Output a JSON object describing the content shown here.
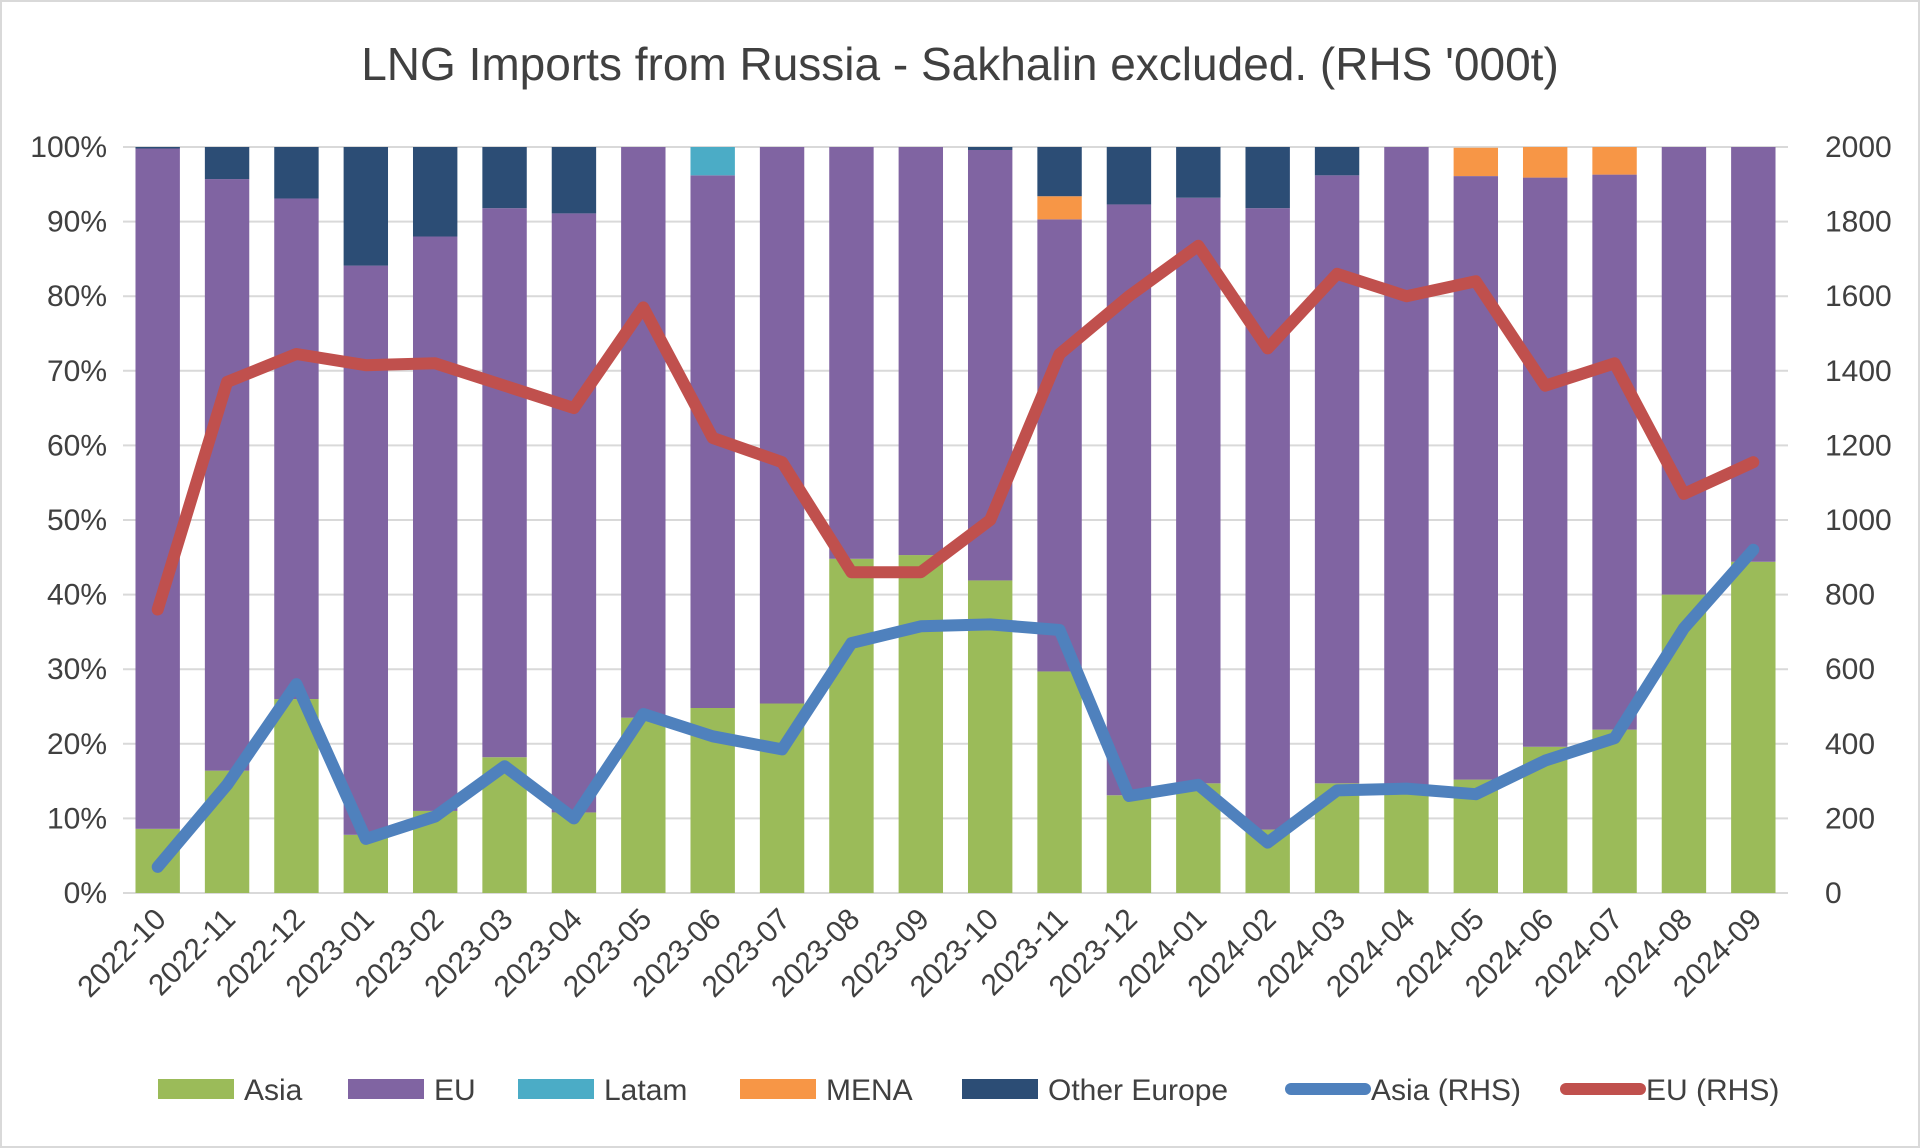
{
  "chart_data": {
    "type": "bar",
    "title": "LNG Imports from Russia - Sakhalin excluded. (RHS '000t)",
    "categories": [
      "2022-10",
      "2022-11",
      "2022-12",
      "2023-01",
      "2023-02",
      "2023-03",
      "2023-04",
      "2023-05",
      "2023-06",
      "2023-07",
      "2023-08",
      "2023-09",
      "2023-10",
      "2023-11",
      "2023-12",
      "2024-01",
      "2024-02",
      "2024-03",
      "2024-04",
      "2024-05",
      "2024-06",
      "2024-07",
      "2024-08",
      "2024-09"
    ],
    "y_left": {
      "ylim": [
        0,
        100
      ],
      "ticks": [
        "0%",
        "10%",
        "20%",
        "30%",
        "40%",
        "50%",
        "60%",
        "70%",
        "80%",
        "90%",
        "100%"
      ]
    },
    "y_right": {
      "ylim": [
        0,
        2000
      ],
      "ticks": [
        "0",
        "200",
        "400",
        "600",
        "800",
        "1000",
        "1200",
        "1400",
        "1600",
        "1800",
        "2000"
      ]
    },
    "legend_position": "bottom",
    "gridlines": true,
    "stacked_series": [
      {
        "name": "Asia",
        "color": "#9bbb59",
        "values": [
          8.6,
          16.4,
          26.0,
          7.8,
          11.0,
          18.2,
          10.8,
          23.5,
          24.8,
          25.4,
          44.8,
          45.3,
          41.9,
          29.7,
          13.1,
          14.7,
          8.5,
          14.7,
          14.5,
          15.2,
          19.6,
          21.9,
          40.0,
          44.4
        ]
      },
      {
        "name": "EU",
        "color": "#8064a2",
        "values": [
          91.2,
          79.3,
          67.1,
          76.3,
          77.0,
          73.6,
          80.3,
          76.5,
          71.4,
          74.6,
          55.2,
          54.7,
          57.7,
          60.6,
          79.2,
          78.5,
          83.3,
          81.5,
          85.5,
          80.9,
          76.3,
          74.4,
          60.0,
          55.6
        ]
      },
      {
        "name": "Latam",
        "color": "#4bacc6",
        "values": [
          0,
          0,
          0,
          0,
          0,
          0,
          0,
          0,
          3.8,
          0,
          0,
          0,
          0,
          0,
          0,
          0,
          0,
          0,
          0,
          0,
          0,
          0,
          0,
          0
        ]
      },
      {
        "name": "MENA",
        "color": "#f79646",
        "values": [
          0,
          0,
          0,
          0,
          0,
          0,
          0,
          0,
          0,
          0,
          0,
          0,
          0,
          3.1,
          0,
          0,
          0,
          0,
          0,
          3.8,
          4.1,
          3.7,
          0,
          0
        ]
      },
      {
        "name": "Other Europe",
        "color": "#2c4d75",
        "values": [
          0.2,
          4.3,
          6.9,
          15.9,
          12.0,
          8.2,
          8.9,
          0,
          0,
          0,
          0,
          0,
          0.4,
          6.6,
          7.7,
          6.8,
          8.2,
          3.8,
          0,
          0,
          0,
          0,
          0,
          0
        ]
      }
    ],
    "line_series": [
      {
        "name": "Asia (RHS)",
        "color": "#4f81bd",
        "axis": "right",
        "values": [
          70,
          290,
          560,
          145,
          205,
          340,
          200,
          480,
          420,
          385,
          670,
          715,
          720,
          705,
          260,
          290,
          135,
          275,
          280,
          265,
          355,
          415,
          710,
          920
        ]
      },
      {
        "name": "EU (RHS)",
        "color": "#c0504d",
        "axis": "right",
        "values": [
          760,
          1370,
          1445,
          1415,
          1420,
          1360,
          1300,
          1570,
          1220,
          1155,
          860,
          860,
          1000,
          1445,
          1600,
          1735,
          1460,
          1660,
          1600,
          1640,
          1360,
          1420,
          1070,
          1155
        ]
      }
    ]
  }
}
